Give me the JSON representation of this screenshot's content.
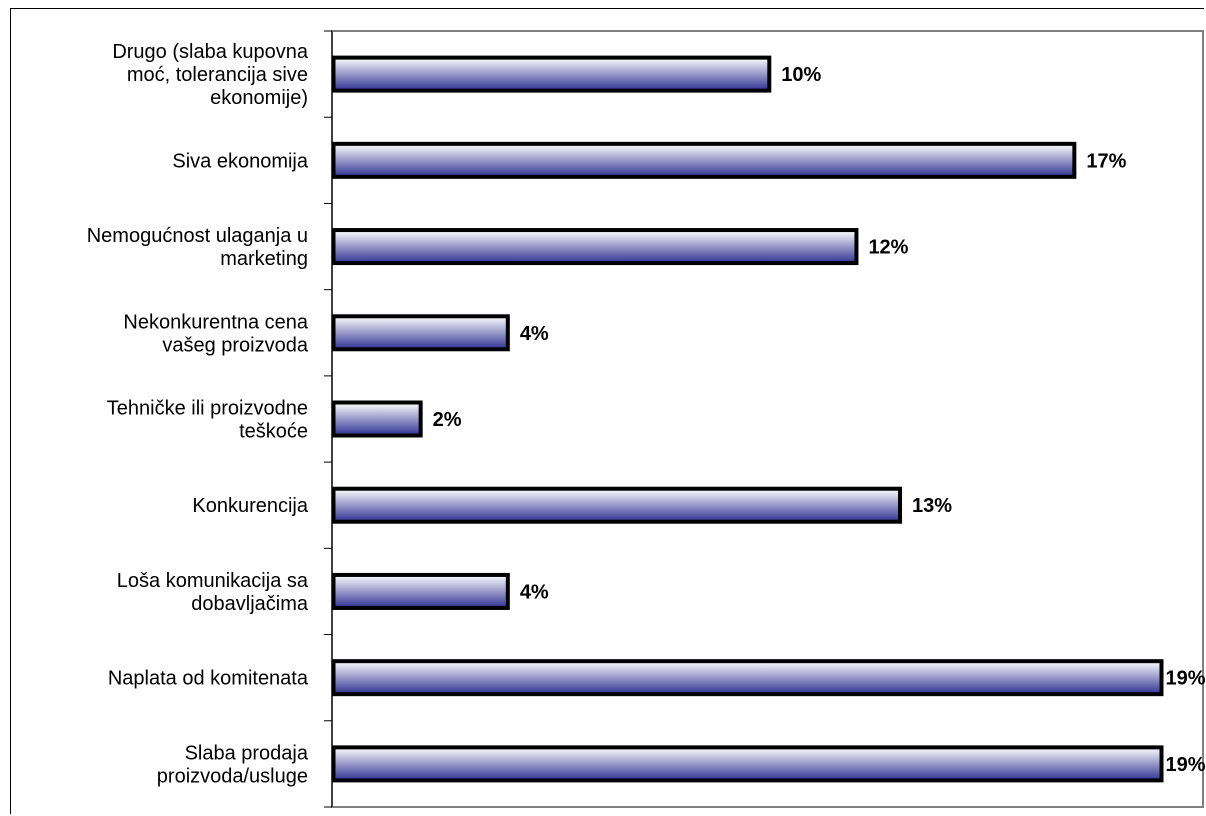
{
  "chart_data": {
    "type": "bar",
    "orientation": "horizontal",
    "categories": [
      "Drugo (slaba kupovna moć, tolerancija sive ekonomije)",
      "Siva ekonomija",
      "Nemogućnost ulaganja u marketing",
      "Nekonkurentna cena vašeg proizvoda",
      "Tehničke ili proizvodne teškoće",
      "Konkurencija",
      "Loša komunikacija sa dobavljačima",
      "Naplata od komitenata",
      "Slaba prodaja proizvoda/usluge"
    ],
    "category_lines": [
      [
        "Drugo (slaba kupovna",
        "moć, tolerancija sive",
        "ekonomije)"
      ],
      [
        "Siva ekonomija"
      ],
      [
        "Nemogućnost ulaganja u",
        "marketing"
      ],
      [
        "Nekonkurentna cena",
        "vašeg proizvoda"
      ],
      [
        "Tehničke ili proizvodne",
        "teškoće"
      ],
      [
        "Konkurencija"
      ],
      [
        "Loša komunikacija sa",
        "dobavljačima"
      ],
      [
        "Naplata od komitenata"
      ],
      [
        "Slaba prodaja",
        "proizvoda/usluge"
      ]
    ],
    "values": [
      10,
      17,
      12,
      4,
      2,
      13,
      4,
      19,
      19
    ],
    "value_labels": [
      "10%",
      "17%",
      "12%",
      "4%",
      "2%",
      "13%",
      "4%",
      "19%",
      "19%"
    ],
    "xlim": [
      0,
      19
    ],
    "grid": false,
    "legend": "none",
    "bar_gradient": [
      "#ffffff",
      "#2e3192"
    ],
    "bar_border": "#000000",
    "plot_border": "#808080"
  }
}
